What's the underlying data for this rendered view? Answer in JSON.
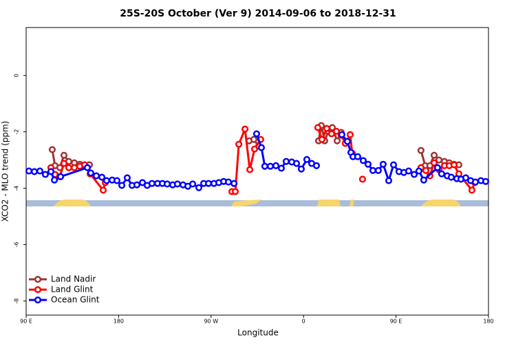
{
  "chart_data": {
    "type": "line",
    "title": "25S-20S October (Ver 9)   2014-09-06 to 2018-12-31",
    "x_label": "Longitude",
    "y_label": "XCO2 - MLO trend (ppm)",
    "xlim": [
      90,
      540
    ],
    "ylim": [
      -8.5,
      1.7
    ],
    "xticks": [
      {
        "value": 90,
        "label": "90 E"
      },
      180,
      {
        "value": 270,
        "label": "90 W"
      },
      {
        "value": 360,
        "label": "0"
      },
      {
        "value": 450,
        "label": "90 E"
      },
      {
        "value": 540,
        "label": "180"
      }
    ],
    "yticks": [
      0,
      -2,
      -4,
      -6,
      -8
    ],
    "grid": false,
    "legend": "bottomleft",
    "series": [
      {
        "name": "Land Nadir",
        "color": "#a03232",
        "x": [
          115.4,
          118.1,
          122.8,
          126.8,
          131.5,
          136.9,
          142.2,
          146.9,
          151.6,
          null,
          307.0,
          311.6,
          316.3,
          null,
          374.6,
          377.3,
          380.6,
          384.0,
          388.0,
          392.7,
          396.7,
          null,
          474.3,
          478.4,
          483.0,
          487.1,
          491.8,
          497.1,
          501.8,
          506.5,
          511.2
        ],
        "values": [
          -2.63,
          -3.2,
          -3.27,
          -2.83,
          -3.05,
          -3.1,
          -3.15,
          -3.2,
          -3.17,
          null,
          -2.32,
          -2.27,
          -2.51,
          null,
          -2.32,
          -1.78,
          -2.32,
          -1.98,
          -1.85,
          -2.32,
          -2.02,
          null,
          -2.66,
          -3.2,
          -3.2,
          -2.83,
          -3.0,
          -3.05,
          -3.1,
          -3.15,
          -3.17
        ]
      },
      {
        "name": "Land Glint",
        "color": "#ff0000",
        "x": [
          114.1,
          118.1,
          122.8,
          126.8,
          131.5,
          136.9,
          142.2,
          146.9,
          152.3,
          165.0,
          167.0,
          null,
          290.2,
          293.6,
          297.0,
          303.0,
          307.7,
          312.3,
          318.3,
          null,
          373.9,
          377.9,
          382.6,
          387.3,
          392.0,
          396.7,
          400.7,
          405.4,
          407.4,
          null,
          417.4,
          null,
          474.3,
          479.0,
          483.0,
          487.1,
          491.8,
          497.1,
          501.8,
          506.5,
          511.2,
          523.9,
          526.6
        ],
        "values": [
          -3.27,
          -3.51,
          -3.59,
          -3.12,
          -3.27,
          -3.27,
          -3.22,
          -3.17,
          -3.49,
          -4.07,
          -3.8,
          null,
          -4.12,
          -4.12,
          -2.44,
          -1.9,
          -3.34,
          -2.61,
          -2.27,
          null,
          -1.85,
          -2.27,
          -1.88,
          -2.07,
          -1.98,
          -2.12,
          -2.41,
          -2.1,
          -2.76,
          null,
          -3.68,
          null,
          -3.27,
          -3.37,
          -3.56,
          -3.1,
          -3.34,
          -3.2,
          -3.2,
          -3.17,
          -3.49,
          -4.07,
          -3.8
        ]
      },
      {
        "name": "Ocean Glint",
        "color": "#0000ff",
        "x": [
          92.7,
          98.0,
          103.4,
          108.7,
          114.1,
          117.5,
          123.5,
          149.6,
          152.9,
          158.3,
          163.7,
          168.3,
          173.7,
          178.4,
          183.1,
          188.4,
          193.1,
          197.8,
          203.2,
          207.8,
          212.5,
          217.9,
          222.6,
          227.3,
          232.6,
          237.3,
          242.7,
          247.4,
          252.1,
          258.1,
          262.8,
          267.5,
          272.8,
          277.5,
          282.2,
          286.9,
          292.3,
          null,
          314.3,
          319.0,
          322.3,
          327.7,
          333.1,
          338.4,
          343.1,
          348.5,
          353.2,
          357.8,
          363.2,
          367.9,
          372.6,
          null,
          397.3,
          402.7,
          406.1,
          408.1,
          412.7,
          418.1,
          422.8,
          427.5,
          432.8,
          437.5,
          442.9,
          447.6,
          452.9,
          457.6,
          462.3,
          467.7,
          472.3,
          477.0,
          490.4,
          494.4,
          499.8,
          503.8,
          509.2,
          513.2,
          517.9,
          522.6,
          527.3,
          532.6,
          537.3
        ],
        "values": [
          -3.39,
          -3.41,
          -3.39,
          -3.51,
          -3.41,
          -3.71,
          -3.59,
          -3.27,
          -3.46,
          -3.56,
          -3.61,
          -3.73,
          -3.71,
          -3.73,
          -3.9,
          -3.63,
          -3.9,
          -3.88,
          -3.8,
          -3.9,
          -3.83,
          -3.83,
          -3.83,
          -3.85,
          -3.88,
          -3.85,
          -3.88,
          -3.93,
          -3.85,
          -3.98,
          -3.83,
          -3.83,
          -3.83,
          -3.8,
          -3.76,
          -3.78,
          -3.83,
          null,
          -2.07,
          -2.56,
          -3.22,
          -3.22,
          -3.2,
          -3.29,
          -3.05,
          -3.07,
          -3.12,
          -3.32,
          -2.98,
          -3.12,
          -3.2,
          null,
          -2.1,
          -2.34,
          -2.73,
          -2.88,
          -2.88,
          -3.02,
          -3.15,
          -3.37,
          -3.37,
          -3.15,
          -3.73,
          -3.17,
          -3.41,
          -3.44,
          -3.39,
          -3.51,
          -3.39,
          -3.71,
          -3.27,
          -3.49,
          -3.56,
          -3.61,
          -3.66,
          -3.68,
          -3.63,
          -3.73,
          -3.78,
          -3.73,
          -3.76
        ]
      }
    ]
  }
}
